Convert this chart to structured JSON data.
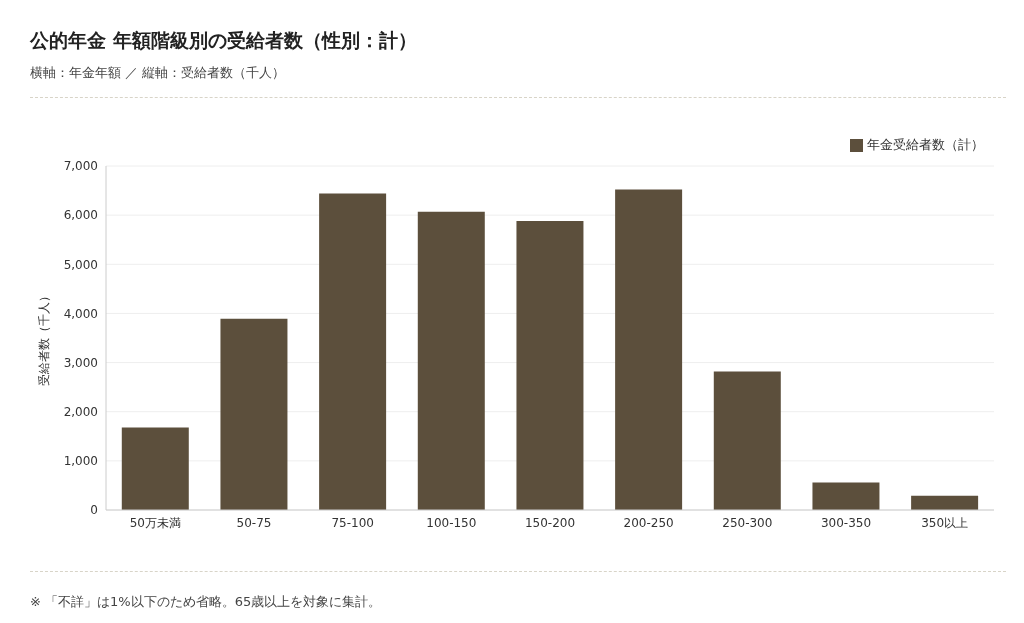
{
  "chart_data": {
    "type": "bar",
    "title": "公的年金 年額階級別の受給者数（性別：計）",
    "subtitle": "横軸：年金年額 ／ 縦軸：受給者数（千人）",
    "ylabel": "受給者数（千人）",
    "annotations": [
      "※ 「不詳」は1%以下のため省略。65歳以上を対象に集計。"
    ],
    "categories": [
      "50万未満",
      "50-75",
      "75-100",
      "100-150",
      "150-200",
      "200-250",
      "250-300",
      "300-350",
      "350以上"
    ],
    "series": [
      {
        "name": "年金受給者数（計）",
        "color": "#5c4f3c",
        "values": [
          1680,
          3890,
          6440,
          6070,
          5880,
          6520,
          2820,
          560,
          290
        ]
      }
    ],
    "ylim": [
      0,
      7000
    ],
    "yticks": [
      {
        "value": 0,
        "label": "0"
      },
      {
        "value": 1000,
        "label": "1,000"
      },
      {
        "value": 2000,
        "label": "2,000"
      },
      {
        "value": 3000,
        "label": "3,000"
      },
      {
        "value": 4000,
        "label": "4,000"
      },
      {
        "value": 5000,
        "label": "5,000"
      },
      {
        "value": 6000,
        "label": "6,000"
      },
      {
        "value": 7000,
        "label": "7,000"
      }
    ],
    "grid": "y",
    "legend": "top right"
  }
}
